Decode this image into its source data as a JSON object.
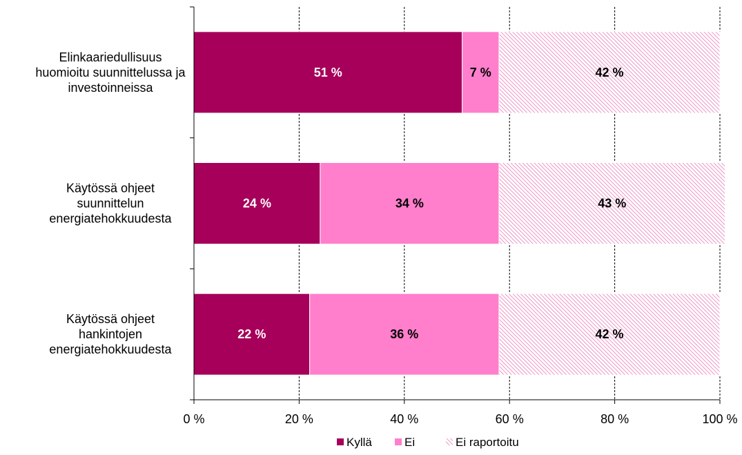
{
  "chart_data": {
    "type": "bar",
    "orientation": "horizontal",
    "stacked": true,
    "categories": [
      [
        "Elinkaariedullisuus",
        "huomioitu suunnittelussa ja",
        "investoinneissa"
      ],
      [
        "Käytössä ohjeet",
        "suunnittelun",
        "energiatehokkuudesta"
      ],
      [
        "Käytössä ohjeet",
        "hankintojen",
        "energiatehokkuudesta"
      ]
    ],
    "series": [
      {
        "name": "Kyllä",
        "color": "#a6005a",
        "pattern": "solid",
        "values": [
          51,
          24,
          22
        ],
        "labels": [
          "51 %",
          "24 %",
          "22 %"
        ],
        "label_color": "#ffffff"
      },
      {
        "name": "Ei",
        "color": "#ff7fcc",
        "pattern": "solid",
        "values": [
          7,
          34,
          36
        ],
        "labels": [
          "7 %",
          "34 %",
          "36 %"
        ],
        "label_color": "#000000"
      },
      {
        "name": "Ei raportoitu",
        "color": "#e87ab8",
        "pattern": "diagonal-hatch",
        "values": [
          42,
          43,
          42
        ],
        "labels": [
          "42 %",
          "43 %",
          "42 %"
        ],
        "label_color": "#000000"
      }
    ],
    "x_ticks": [
      0,
      20,
      40,
      60,
      80,
      100
    ],
    "x_tick_labels": [
      "0 %",
      "20 %",
      "40 %",
      "60 %",
      "80 %",
      "100 %"
    ],
    "xlim": [
      0,
      100
    ],
    "grid": "vertical-dashed",
    "legend": "bottom-center",
    "title": "",
    "xlabel": "",
    "ylabel": ""
  }
}
